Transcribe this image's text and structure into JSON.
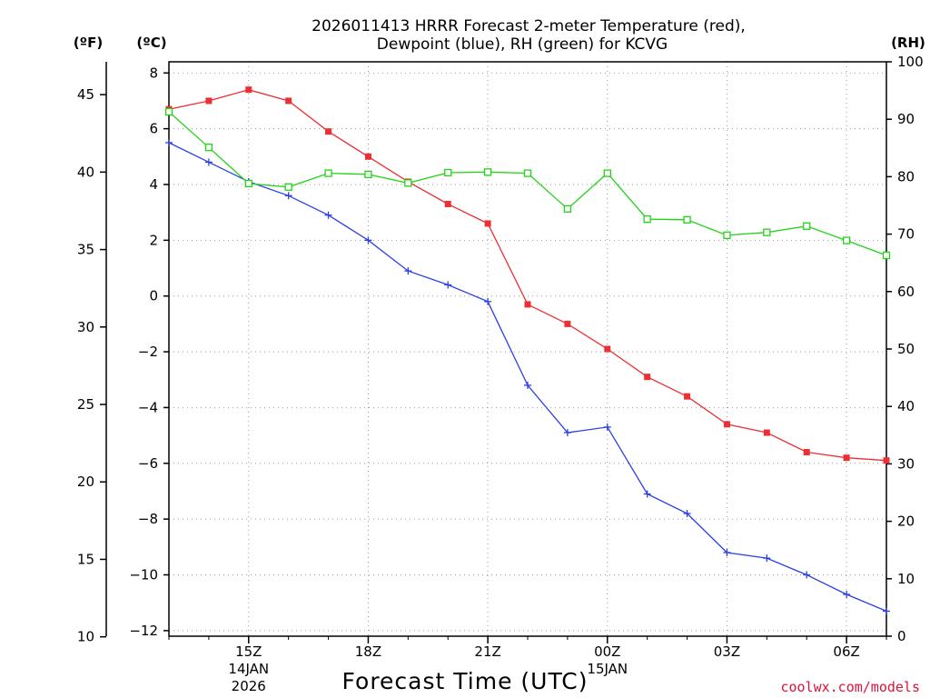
{
  "chart_data": {
    "type": "line",
    "title_line1": "2026011413 HRRR Forecast 2-meter Temperature (red),",
    "title_line2": "Dewpoint (blue), RH (green) for KCVG",
    "xlabel": "Forecast Time (UTC)",
    "credit": "coolwx.com/models",
    "units": {
      "fahrenheit": "(ºF)",
      "celsius": "(ºC)",
      "rh": "(RH)"
    },
    "ylim_c": [
      -12.2,
      8.4
    ],
    "ylim_rh": [
      0,
      100
    ],
    "x_hours": [
      13,
      14,
      15,
      16,
      17,
      18,
      19,
      20,
      21,
      22,
      23,
      24,
      25,
      26,
      27,
      28,
      29,
      30,
      31
    ],
    "x_ticks": [
      {
        "hour": 15,
        "label": "15Z",
        "sub1": "14JAN",
        "sub2": "2026"
      },
      {
        "hour": 18,
        "label": "18Z",
        "sub1": "",
        "sub2": ""
      },
      {
        "hour": 21,
        "label": "21Z",
        "sub1": "",
        "sub2": ""
      },
      {
        "hour": 24,
        "label": "00Z",
        "sub1": "15JAN",
        "sub2": ""
      },
      {
        "hour": 27,
        "label": "03Z",
        "sub1": "",
        "sub2": ""
      },
      {
        "hour": 30,
        "label": "06Z",
        "sub1": "",
        "sub2": ""
      }
    ],
    "celsius_ticks": [
      "8",
      "6",
      "4",
      "2",
      "0",
      "−2",
      "−4",
      "−6",
      "−8",
      "−10",
      "−12"
    ],
    "fahrenheit_ticks": [
      "45",
      "40",
      "35",
      "30",
      "25",
      "20",
      "15",
      "10"
    ],
    "rh_ticks": [
      "100",
      "90",
      "80",
      "70",
      "60",
      "50",
      "40",
      "30",
      "20",
      "10",
      "0"
    ],
    "series": [
      {
        "name": "Temperature",
        "color": "#ec2f34",
        "marker": "filled-square",
        "axis": "celsius",
        "values": [
          6.7,
          7.0,
          7.4,
          7.0,
          5.9,
          5.0,
          4.1,
          3.3,
          2.6,
          -0.3,
          -1.0,
          -1.9,
          -2.9,
          -3.6,
          -4.6,
          -4.9,
          -5.6,
          -5.8,
          -5.9
        ]
      },
      {
        "name": "Dewpoint",
        "color": "#2c3fe6",
        "marker": "plus",
        "axis": "celsius",
        "values": [
          5.5,
          4.8,
          4.1,
          3.6,
          2.9,
          2.0,
          0.9,
          0.4,
          -0.2,
          -3.2,
          -4.9,
          -4.7,
          -7.1,
          -7.8,
          -9.2,
          -9.4,
          -10.0,
          -10.7,
          -11.3
        ]
      },
      {
        "name": "RH",
        "color": "#22d318",
        "marker": "open-square",
        "axis": "rh",
        "values": [
          91.3,
          85.1,
          78.8,
          78.2,
          80.6,
          80.4,
          78.9,
          80.7,
          80.8,
          80.6,
          74.4,
          80.6,
          72.6,
          72.5,
          69.8,
          70.3,
          71.4,
          68.9,
          66.3
        ]
      }
    ]
  }
}
